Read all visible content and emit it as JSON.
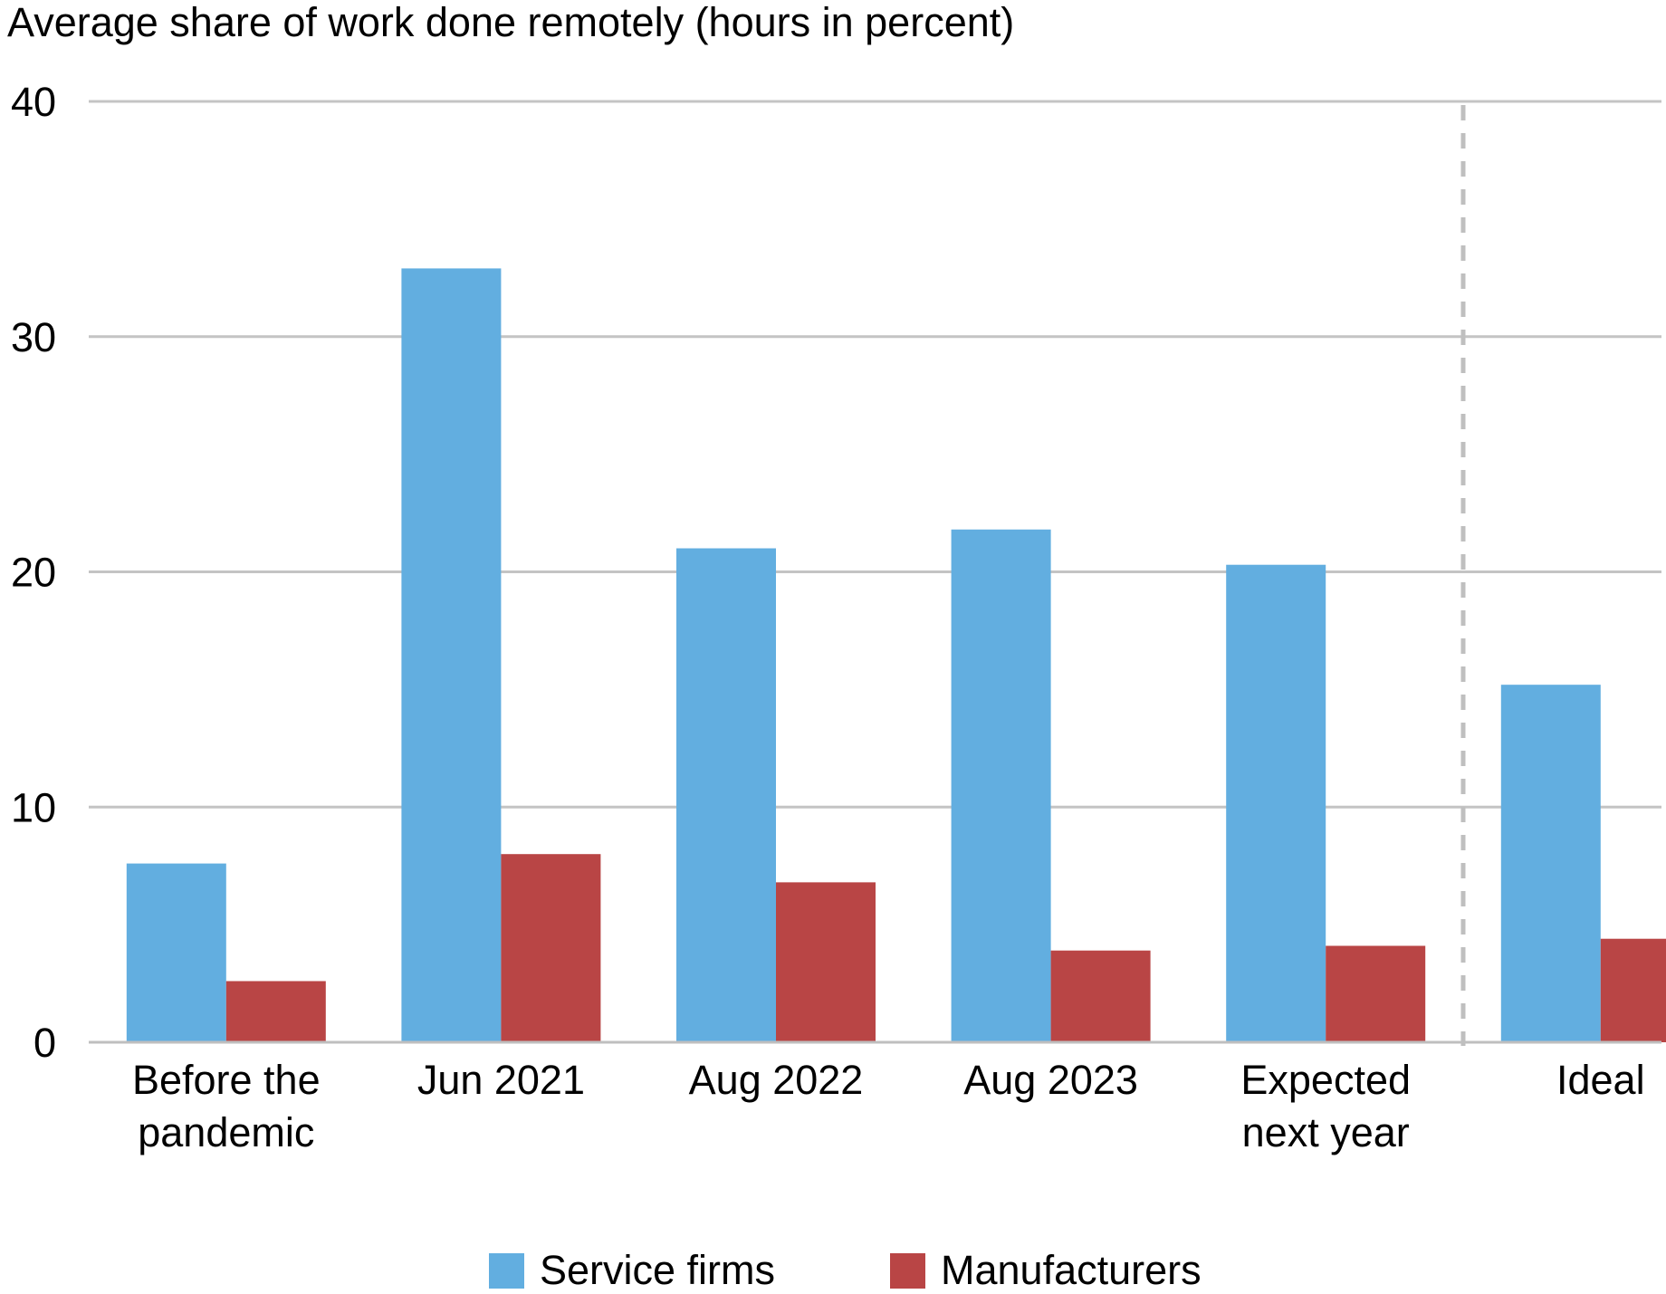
{
  "chart_data": {
    "type": "bar",
    "title": "",
    "ylabel": "Average share of work done remotely (hours in percent)",
    "xlabel": "",
    "ylim": [
      0,
      40
    ],
    "yticks": [
      "0",
      "10",
      "20",
      "30",
      "40"
    ],
    "grid": true,
    "legend_position": "bottom",
    "separator_before_category": "Ideal",
    "categories": [
      [
        "Before the",
        "pandemic"
      ],
      [
        "Jun 2021"
      ],
      [
        "Aug 2022"
      ],
      [
        "Aug 2023"
      ],
      [
        "Expected",
        "next year"
      ],
      [
        "Ideal"
      ]
    ],
    "series": [
      {
        "name": "Service firms",
        "color": "#62AEE0",
        "values": [
          7.6,
          32.9,
          21.0,
          21.8,
          20.3,
          15.2
        ]
      },
      {
        "name": "Manufacturers",
        "color": "#B94545",
        "values": [
          2.6,
          8.0,
          6.8,
          3.9,
          4.1,
          4.4
        ]
      }
    ],
    "colors": {
      "grid": "#C4C4C4",
      "separator": "#BFBFBF",
      "baseline": "#BFBFBF"
    }
  }
}
